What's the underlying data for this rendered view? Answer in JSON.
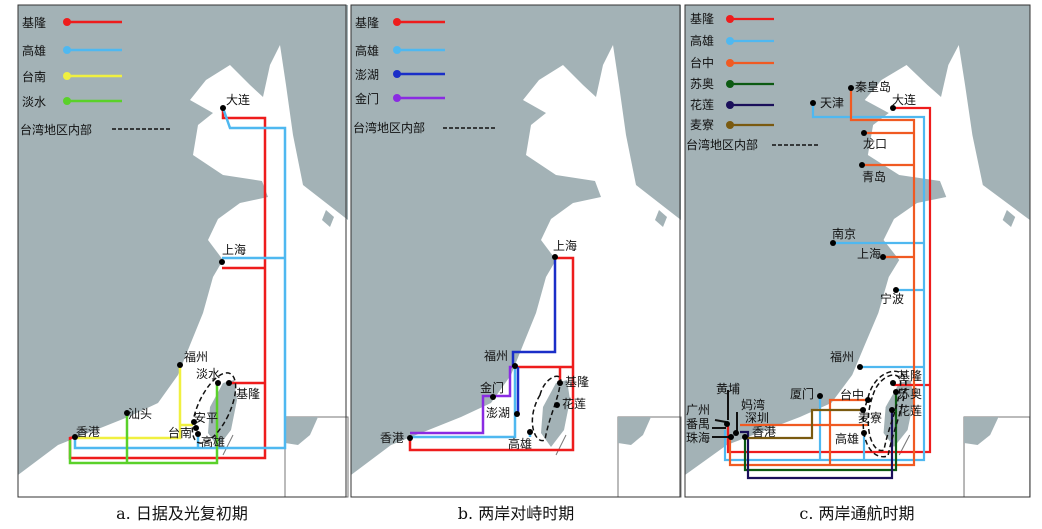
{
  "colors": {
    "land": "#a3b2b6",
    "sea": "#ffffff",
    "red": "#ee1c1c",
    "lightblue": "#4fb8f0",
    "yellow": "#f0f040",
    "green": "#5ad12a",
    "blue": "#1a2ec8",
    "purple": "#8a2be2",
    "orange": "#f05a22",
    "darkgreen": "#0c5a12",
    "navy": "#1a0f5a",
    "brown": "#7a5a10"
  },
  "panels": [
    {
      "caption": "a. 日据及光复初期",
      "legend": [
        "基隆",
        "高雄",
        "台南",
        "淡水"
      ],
      "internal": "台湾地区内部",
      "cities": [
        "大连",
        "上海",
        "福州",
        "淡水",
        "基隆",
        "汕头",
        "安平",
        "台南",
        "高雄",
        "香港"
      ]
    },
    {
      "caption": "b. 两岸对峙时期",
      "legend": [
        "基隆",
        "高雄",
        "澎湖",
        "金门"
      ],
      "internal": "台湾地区内部",
      "cities": [
        "上海",
        "福州",
        "金门",
        "澎湖",
        "基隆",
        "花莲",
        "高雄",
        "香港"
      ]
    },
    {
      "caption": "c. 两岸通航时期",
      "legend": [
        "基隆",
        "高雄",
        "台中",
        "苏奥",
        "花莲",
        "麦寮"
      ],
      "internal": "台湾地区内部",
      "cities": [
        "秦皇岛",
        "天津",
        "大连",
        "龙口",
        "青岛",
        "南京",
        "上海",
        "宁波",
        "福州",
        "厦门",
        "台中",
        "基隆",
        "苏奥",
        "花莲",
        "麦寮",
        "高雄",
        "黄埔",
        "妈湾",
        "广州",
        "深圳",
        "番禺",
        "香港",
        "珠海"
      ]
    }
  ]
}
